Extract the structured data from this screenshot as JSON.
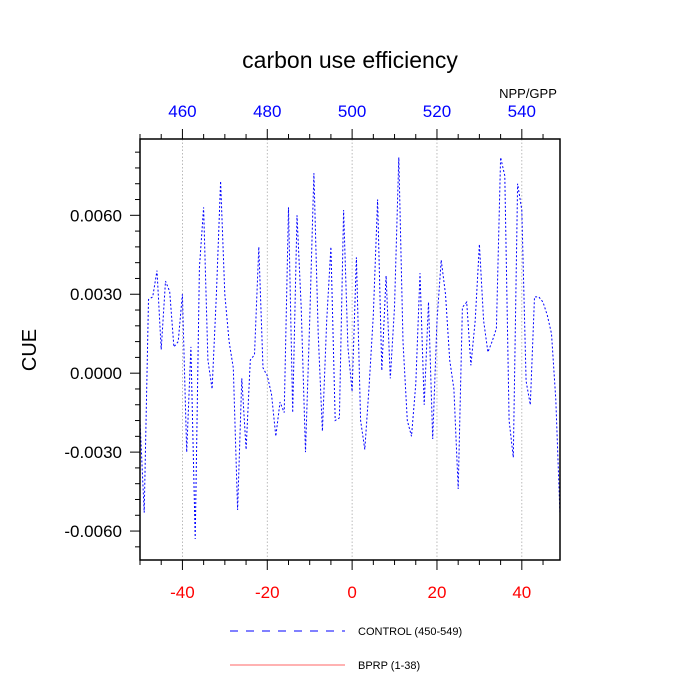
{
  "chart_data": {
    "type": "line",
    "title": "carbon use efficiency",
    "ylabel": "CUE",
    "top_axis_label": "NPP/GPP",
    "xlim": [
      -50,
      49
    ],
    "ylim": [
      -0.0071,
      0.0089
    ],
    "grid": "vertical dotted lines at x ticks",
    "bottom_ticks": {
      "values": [
        -40,
        -20,
        0,
        20,
        40
      ],
      "labels": [
        "-40",
        "-20",
        "0",
        "20",
        "40"
      ],
      "color": "#ff0000"
    },
    "top_ticks": {
      "values": [
        -40,
        -20,
        0,
        20,
        40
      ],
      "labels": [
        "460",
        "480",
        "500",
        "520",
        "540"
      ],
      "color": "#0000ff"
    },
    "y_ticks": {
      "values": [
        -0.006,
        -0.003,
        0,
        0.003,
        0.006
      ],
      "labels": [
        "-0.0060",
        "-0.0030",
        "0.0000",
        "0.0030",
        "0.0060"
      ]
    },
    "series": [
      {
        "name": "CONTROL (450-549)",
        "color": "#0000ff",
        "style": "dashed",
        "x": [
          -50,
          -49,
          -48,
          -47,
          -46,
          -45,
          -44,
          -43,
          -42,
          -41,
          -40,
          -39,
          -38,
          -37,
          -36,
          -35,
          -34,
          -33,
          -32,
          -31,
          -30,
          -29,
          -28,
          -27,
          -26,
          -25,
          -24,
          -23,
          -22,
          -21,
          -20,
          -19,
          -18,
          -17,
          -16,
          -15,
          -14,
          -13,
          -12,
          -11,
          -10,
          -9,
          -8,
          -7,
          -6,
          -5,
          -4,
          -3,
          -2,
          -1,
          0,
          1,
          2,
          3,
          4,
          5,
          6,
          7,
          8,
          9,
          10,
          11,
          12,
          13,
          14,
          15,
          16,
          17,
          18,
          19,
          20,
          21,
          22,
          23,
          24,
          25,
          26,
          27,
          28,
          29,
          30,
          31,
          32,
          33,
          34,
          35,
          36,
          37,
          38,
          39,
          40,
          41,
          42,
          43,
          44,
          45,
          46,
          47,
          48,
          49
        ],
        "y": [
          -0.0018,
          -0.0053,
          0.0028,
          0.0029,
          0.0039,
          0.0009,
          0.0035,
          0.0031,
          0.001,
          0.0012,
          0.003,
          -0.003,
          0.001,
          -0.0063,
          0.004,
          0.0063,
          0.0005,
          -0.0006,
          0.003,
          0.0073,
          0.003,
          0.0012,
          0.0002,
          -0.0052,
          -0.0002,
          -0.0029,
          0.0005,
          0.0007,
          0.0048,
          0.0002,
          -0.0001,
          -0.0008,
          -0.0024,
          -0.0011,
          -0.0015,
          0.0063,
          -0.0015,
          0.006,
          0.0025,
          -0.003,
          0.002,
          0.0076,
          0.0015,
          -0.0022,
          0.002,
          0.0048,
          -0.0018,
          -0.0017,
          0.0062,
          0.001,
          -0.0007,
          0.0044,
          -0.0018,
          -0.0029,
          -0.0005,
          0.0022,
          0.0066,
          0.0001,
          0.0037,
          -0.0002,
          0.0025,
          0.0082,
          0.0012,
          -0.0018,
          -0.0024,
          -0.0004,
          0.0038,
          -0.0012,
          0.0027,
          -0.0025,
          0.002,
          0.0043,
          0.003,
          0.0005,
          -0.0006,
          -0.0044,
          0.0025,
          0.0027,
          0.0003,
          0.002,
          0.0049,
          0.002,
          0.0008,
          0.0012,
          0.0017,
          0.0082,
          0.0075,
          -0.0018,
          -0.0032,
          0.0072,
          0.0062,
          -0.0003,
          -0.0012,
          0.0029,
          0.0029,
          0.0027,
          0.0022,
          0.0015,
          -0.001,
          -0.0054
        ]
      },
      {
        "name": "BPRP (1-38)",
        "color": "#ff0000",
        "style": "solid",
        "x": [],
        "y": []
      }
    ],
    "legend_position": "bottom-center"
  }
}
